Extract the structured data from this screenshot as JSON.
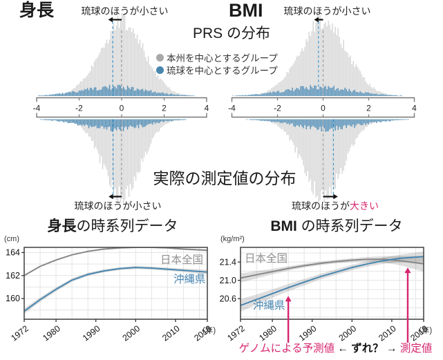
{
  "colors": {
    "blue": "#4886b0",
    "blue_dash": "#4699cc",
    "gray_fill": "#d4d4d4",
    "gray_dash": "#9a9a9a",
    "gray_line": "#878787",
    "gray_label": "#909090",
    "magenta": "#d6256e",
    "band": "rgba(0,0,0,0.13)",
    "grid": "#e4e4e4",
    "frame": "#4a4a4a"
  },
  "distribution_section": {
    "prs_title": "PRS の分布",
    "measured_title": "実際の測定値の分布",
    "legend": [
      {
        "label": "本州を中心とするグループ",
        "color": "#a8a8a8"
      },
      {
        "label": "琉球を中心とするグループ",
        "color": "#4886b0"
      }
    ],
    "panels": [
      {
        "variable": "身長",
        "prs": {
          "annotation_prefix": "琉球のほうが",
          "annotation_suffix": "小さい",
          "suffix_magenta": false
        },
        "measured": {
          "annotation_prefix": "琉球のほうが",
          "annotation_suffix": "小さい",
          "suffix_magenta": false
        }
      },
      {
        "variable": "BMI",
        "prs": {
          "annotation_prefix": "琉球のほうが",
          "annotation_suffix": "小さい",
          "suffix_magenta": false
        },
        "measured": {
          "annotation_prefix": "琉球のほうが",
          "annotation_suffix": "大きい",
          "suffix_magenta": true
        }
      }
    ]
  },
  "chart_data": [
    {
      "type": "mirrored_density",
      "panel": "身長",
      "top_label": "PRS の分布",
      "bottom_label": "実際の測定値の分布",
      "xlim": [
        -4,
        4
      ],
      "xticks": [
        -4,
        -2,
        0,
        2,
        4
      ],
      "top": {
        "series": [
          {
            "name": "本州を中心とするグループ",
            "mean": 0,
            "sd": 1.05,
            "rel_height": 1.0,
            "color_key": "gray_fill"
          },
          {
            "name": "琉球を中心とするグループ",
            "mean": -0.35,
            "sd": 1.55,
            "rel_height": 0.12,
            "color_key": "blue"
          }
        ],
        "gray_median": 0,
        "blue_median": -0.42,
        "arrow": "left"
      },
      "bottom": {
        "series": [
          {
            "name": "本州を中心とするグループ",
            "mean": 0,
            "sd": 0.9,
            "rel_height": 1.0,
            "color_key": "gray_fill"
          },
          {
            "name": "琉球を中心とするグループ",
            "mean": -0.35,
            "sd": 1.45,
            "rel_height": 0.13,
            "color_key": "blue"
          }
        ],
        "gray_median": 0,
        "blue_median": -0.4,
        "arrow": "left"
      }
    },
    {
      "type": "mirrored_density",
      "panel": "BMI",
      "top_label": "PRS の分布",
      "bottom_label": "実際の測定値の分布",
      "xlim": [
        -4,
        4
      ],
      "xticks": [
        -4,
        -2,
        0,
        2,
        4
      ],
      "top": {
        "series": [
          {
            "name": "本州を中心とするグループ",
            "mean": 0,
            "sd": 1.05,
            "rel_height": 1.0,
            "color_key": "gray_fill"
          },
          {
            "name": "琉球を中心とするグループ",
            "mean": -0.2,
            "sd": 1.5,
            "rel_height": 0.12,
            "color_key": "blue"
          }
        ],
        "gray_median": 0,
        "blue_median": -0.2,
        "arrow": "left"
      },
      "bottom": {
        "series": [
          {
            "name": "本州を中心とするグループ",
            "mean": 0,
            "sd": 0.9,
            "rel_height": 1.0,
            "color_key": "gray_fill"
          },
          {
            "name": "琉球を中心とするグループ",
            "mean": 0.2,
            "sd": 1.45,
            "rel_height": 0.13,
            "color_key": "blue"
          }
        ],
        "gray_median": 0,
        "blue_median": 0.45,
        "arrow": "right"
      }
    },
    {
      "type": "line",
      "title_bold": "身長",
      "title_rest": "の時系列データ",
      "ylabel": "(cm)",
      "xlabel": "(年)",
      "yticks": [
        164,
        162,
        160
      ],
      "ylim": [
        158.2,
        164.45
      ],
      "xticks": [
        1972,
        1980,
        1990,
        2000,
        2010,
        2018
      ],
      "x": [
        1972,
        1976,
        1980,
        1984,
        1988,
        1992,
        1996,
        2000,
        2004,
        2008,
        2012,
        2018
      ],
      "series": [
        {
          "name": "日本全国",
          "color_key": "gray_line",
          "values": [
            162.0,
            162.8,
            163.35,
            163.8,
            164.1,
            164.3,
            164.4,
            164.45,
            164.45,
            164.4,
            164.3,
            164.2
          ],
          "band": [
            0.07,
            0.06,
            0.05,
            0.05,
            0.05,
            0.05,
            0.05,
            0.05,
            0.05,
            0.06,
            0.07,
            0.09
          ]
        },
        {
          "name": "沖縄県",
          "color_key": "blue",
          "values": [
            158.9,
            159.9,
            160.8,
            161.6,
            162.1,
            162.4,
            162.6,
            162.7,
            162.65,
            162.55,
            162.45,
            162.3
          ],
          "band": [
            0.25,
            0.2,
            0.17,
            0.15,
            0.14,
            0.13,
            0.13,
            0.13,
            0.13,
            0.14,
            0.16,
            0.2
          ]
        }
      ]
    },
    {
      "type": "line",
      "title_bold": "BMI",
      "title_rest": " の時系列データ",
      "ylabel": "(kg/m²)",
      "xlabel": "(年)",
      "yticks": [
        21.4,
        21.0,
        20.6
      ],
      "ylim": [
        20.15,
        21.72
      ],
      "xticks": [
        1972,
        1980,
        1990,
        2000,
        2010,
        2018
      ],
      "x": [
        1972,
        1976,
        1980,
        1984,
        1988,
        1992,
        1996,
        2000,
        2004,
        2008,
        2012,
        2018
      ],
      "series": [
        {
          "name": "日本全国",
          "color_key": "gray_line",
          "values": [
            21.05,
            21.12,
            21.19,
            21.26,
            21.32,
            21.37,
            21.41,
            21.44,
            21.46,
            21.46,
            21.43,
            21.36
          ],
          "band": [
            0.1,
            0.08,
            0.06,
            0.05,
            0.04,
            0.04,
            0.04,
            0.04,
            0.05,
            0.07,
            0.1,
            0.17
          ]
        },
        {
          "name": "沖縄県",
          "color_key": "blue",
          "values": [
            20.45,
            20.58,
            20.71,
            20.84,
            20.96,
            21.08,
            21.18,
            21.28,
            21.36,
            21.43,
            21.48,
            21.52
          ],
          "band": [
            0.14,
            0.11,
            0.09,
            0.08,
            0.07,
            0.06,
            0.06,
            0.06,
            0.06,
            0.07,
            0.08,
            0.11
          ]
        }
      ],
      "annotation_arrows": [
        {
          "x": 1984,
          "y": 20.66,
          "label": "ゲノムによる予測値"
        },
        {
          "x": 2014,
          "y": 21.28,
          "label": "測定値"
        }
      ]
    }
  ],
  "timeseries_section": {
    "caption": {
      "predicted": "ゲノムによる予測値",
      "arrow_left": " ← ",
      "gap": "ずれ？",
      "arrow_right": " → ",
      "measured": "測定値"
    }
  }
}
